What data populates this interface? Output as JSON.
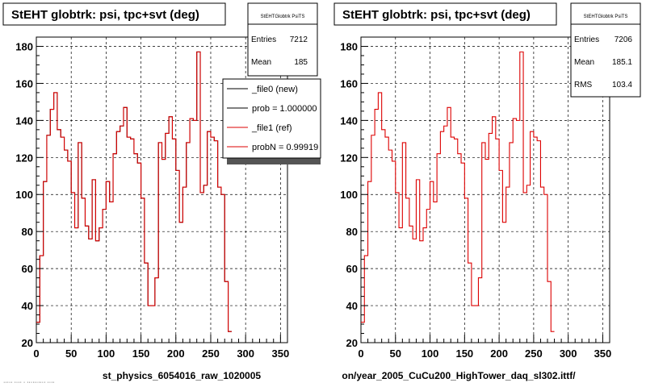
{
  "chart_data": [
    {
      "type": "histogram",
      "title": "StEHT globtrk: psi, tpc+svt (deg)",
      "xlabel": "st_physics_6054016_raw_1020005",
      "xlim": [
        0,
        360
      ],
      "ylim": [
        20,
        185
      ],
      "xticks": [
        0,
        50,
        100,
        150,
        200,
        250,
        300,
        350
      ],
      "yticks": [
        20,
        40,
        60,
        80,
        100,
        120,
        140,
        160,
        180
      ],
      "grid": true,
      "bin_width": 5,
      "series": [
        {
          "name": "_file0 (new)",
          "color": "#000000",
          "values": [
            31,
            67,
            107,
            132,
            146,
            155,
            135,
            131,
            124,
            118,
            101,
            82,
            128,
            98,
            83,
            76,
            108,
            75,
            82,
            92,
            107,
            96,
            122,
            134,
            137,
            147,
            131,
            130,
            122,
            117,
            98,
            63,
            40,
            40,
            55,
            128,
            119,
            133,
            142,
            130,
            113,
            85,
            104,
            128,
            141,
            140,
            177,
            101,
            105,
            134,
            131,
            129,
            104,
            100,
            53,
            26
          ]
        },
        {
          "name": "_file1 (ref)",
          "color": "#dd0000",
          "values": [
            31,
            67,
            107,
            132,
            146,
            155,
            135,
            131,
            124,
            118,
            101,
            82,
            128,
            98,
            83,
            76,
            108,
            75,
            82,
            92,
            107,
            96,
            122,
            134,
            137,
            147,
            131,
            130,
            122,
            117,
            98,
            63,
            40,
            40,
            55,
            128,
            119,
            133,
            142,
            130,
            113,
            85,
            104,
            128,
            141,
            140,
            177,
            101,
            105,
            134,
            131,
            129,
            104,
            100,
            53,
            26
          ]
        }
      ],
      "stats": {
        "title": "StEHTGlobtrk PsiTS",
        "Entries": "7212",
        "Mean": "185"
      },
      "legend": {
        "position": "top-right",
        "entries": [
          "_file0 (new)",
          "prob = 1.000000",
          "_file1 (ref)",
          "probN = 0.99919"
        ]
      }
    },
    {
      "type": "histogram",
      "title": "StEHT globtrk: psi, tpc+svt (deg)",
      "xlabel": "on/year_2005_CuCu200_HighTower_daq_sl302.ittf/",
      "xlim": [
        0,
        360
      ],
      "ylim": [
        20,
        185
      ],
      "xticks": [
        0,
        50,
        100,
        150,
        200,
        250,
        300,
        350
      ],
      "yticks": [
        20,
        40,
        60,
        80,
        100,
        120,
        140,
        160,
        180
      ],
      "grid": true,
      "bin_width": 5,
      "series": [
        {
          "name": "_file1 (ref)",
          "color": "#dd0000",
          "values": [
            31,
            67,
            107,
            132,
            146,
            155,
            135,
            131,
            124,
            118,
            101,
            82,
            128,
            98,
            83,
            76,
            108,
            75,
            82,
            92,
            107,
            96,
            122,
            134,
            137,
            147,
            131,
            130,
            122,
            117,
            98,
            63,
            40,
            40,
            55,
            128,
            119,
            133,
            142,
            130,
            113,
            85,
            104,
            128,
            141,
            140,
            177,
            101,
            105,
            134,
            131,
            129,
            104,
            100,
            53,
            26
          ]
        }
      ],
      "stats": {
        "title": "StEHTGlobtrk PsiTS",
        "Entries": "7206",
        "Mean": "185.1",
        "RMS": "103.4"
      }
    }
  ],
  "footer_text": "····· ···· · ·········· ····"
}
